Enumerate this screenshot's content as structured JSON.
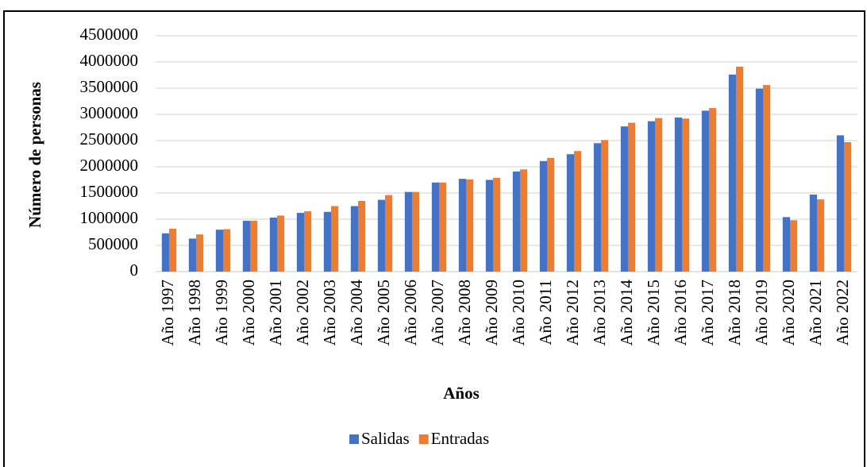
{
  "chart_data": {
    "type": "bar",
    "x_label": "Años",
    "y_label": "Número de personas",
    "categories": [
      "Año 1997",
      "Año 1998",
      "Año 1999",
      "Año 2000",
      "Año 2001",
      "Año 2002",
      "Año 2003",
      "Año 2004",
      "Año 2005",
      "Año 2006",
      "Año 2007",
      "Año 2008",
      "Año 2009",
      "Año 2010",
      "Año 2011",
      "Año 2012",
      "Año 2013",
      "Año 2014",
      "Año 2015",
      "Año 2016",
      "Año 2017",
      "Año 2018",
      "Año 2019",
      "Año 2020",
      "Año 2021",
      "Año 2022"
    ],
    "series": [
      {
        "name": "Salidas",
        "color": "#4472c4",
        "values": [
          730000,
          630000,
          800000,
          970000,
          1030000,
          1120000,
          1140000,
          1250000,
          1370000,
          1520000,
          1700000,
          1770000,
          1750000,
          1910000,
          2110000,
          2240000,
          2450000,
          2770000,
          2870000,
          2940000,
          3070000,
          3760000,
          3490000,
          1040000,
          1470000,
          2600000
        ]
      },
      {
        "name": "Entradas",
        "color": "#ed7d31",
        "values": [
          820000,
          710000,
          810000,
          970000,
          1070000,
          1150000,
          1250000,
          1350000,
          1460000,
          1520000,
          1700000,
          1760000,
          1790000,
          1950000,
          2170000,
          2300000,
          2510000,
          2840000,
          2930000,
          2920000,
          3120000,
          3910000,
          3560000,
          980000,
          1380000,
          2470000
        ]
      }
    ],
    "ylim": [
      0,
      4500000
    ],
    "yticks": [
      0,
      500000,
      1000000,
      1500000,
      2000000,
      2500000,
      3000000,
      3500000,
      4000000,
      4500000
    ],
    "grid": true,
    "legend": "bottom"
  }
}
